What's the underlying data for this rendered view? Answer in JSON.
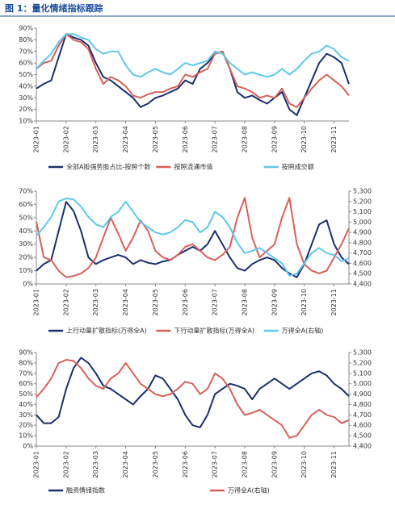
{
  "title": "图 1：量化情绪指标跟踪",
  "chart_data": [
    {
      "type": "line",
      "categories": [
        "2023-01",
        null,
        null,
        null,
        "2023-02",
        null,
        null,
        null,
        "2023-03",
        null,
        null,
        null,
        "2023-04",
        null,
        null,
        null,
        "2023-05",
        null,
        null,
        null,
        "2023-06",
        null,
        null,
        null,
        "2023-07",
        null,
        null,
        null,
        "2023-08",
        null,
        null,
        null,
        "2023-09",
        null,
        null,
        null,
        "2023-10",
        null,
        null,
        null,
        "2023-11",
        null,
        null
      ],
      "ylim": [
        10,
        90
      ],
      "yticks": [
        {
          "value": 10,
          "label": "10%"
        },
        {
          "value": 20,
          "label": "20%"
        },
        {
          "value": 30,
          "label": "30%"
        },
        {
          "value": 40,
          "label": "40%"
        },
        {
          "value": 50,
          "label": "50%"
        },
        {
          "value": 60,
          "label": "60%"
        },
        {
          "value": 70,
          "label": "70%"
        },
        {
          "value": 80,
          "label": "80%"
        },
        {
          "value": 90,
          "label": "90%"
        }
      ],
      "legend": "bottom",
      "series": [
        {
          "name": "全部A股强势股占比-按照个数",
          "color": "#1b2f6e",
          "values": [
            38,
            42,
            45,
            65,
            85,
            82,
            80,
            75,
            60,
            48,
            45,
            40,
            35,
            30,
            22,
            25,
            30,
            32,
            35,
            38,
            45,
            42,
            55,
            60,
            68,
            70,
            55,
            35,
            30,
            32,
            28,
            25,
            30,
            35,
            20,
            15,
            30,
            45,
            60,
            68,
            65,
            60,
            42
          ]
        },
        {
          "name": "按照流通市值",
          "color": "#d9605a",
          "values": [
            55,
            60,
            62,
            75,
            85,
            80,
            78,
            72,
            55,
            42,
            48,
            45,
            40,
            32,
            30,
            33,
            35,
            35,
            38,
            40,
            50,
            48,
            52,
            55,
            68,
            70,
            55,
            40,
            38,
            35,
            30,
            32,
            30,
            38,
            25,
            22,
            30,
            38,
            45,
            50,
            45,
            40,
            32
          ]
        },
        {
          "name": "按照成交额",
          "color": "#5ec8ea",
          "values": [
            55,
            62,
            68,
            78,
            85,
            85,
            82,
            80,
            72,
            68,
            70,
            70,
            58,
            50,
            48,
            52,
            55,
            52,
            50,
            55,
            60,
            58,
            60,
            62,
            70,
            68,
            60,
            55,
            50,
            52,
            50,
            48,
            50,
            55,
            50,
            55,
            62,
            68,
            70,
            75,
            72,
            65,
            62
          ]
        }
      ]
    },
    {
      "type": "line",
      "categories": [
        "2023-01",
        null,
        null,
        null,
        "2023-02",
        null,
        null,
        null,
        "2023-03",
        null,
        null,
        null,
        "2023-04",
        null,
        null,
        null,
        "2023-05",
        null,
        null,
        null,
        "2023-06",
        null,
        null,
        null,
        "2023-07",
        null,
        null,
        null,
        "2023-08",
        null,
        null,
        null,
        "2023-09",
        null,
        null,
        null,
        "2023-10",
        null,
        null,
        null,
        "2023-11",
        null,
        null
      ],
      "ylim": [
        0,
        70
      ],
      "yticks": [
        {
          "value": 0,
          "label": "0%"
        },
        {
          "value": 10,
          "label": "10%"
        },
        {
          "value": 20,
          "label": "20%"
        },
        {
          "value": 30,
          "label": "30%"
        },
        {
          "value": 40,
          "label": "40%"
        },
        {
          "value": 50,
          "label": "50%"
        },
        {
          "value": 60,
          "label": "60%"
        },
        {
          "value": 70,
          "label": "70%"
        }
      ],
      "y2lim": [
        4400,
        5300
      ],
      "y2ticks": [
        {
          "value": 4400,
          "label": "4,400"
        },
        {
          "value": 4500,
          "label": "4,500"
        },
        {
          "value": 4600,
          "label": "4,600"
        },
        {
          "value": 4700,
          "label": "4,700"
        },
        {
          "value": 4800,
          "label": "4,800"
        },
        {
          "value": 4900,
          "label": "4,900"
        },
        {
          "value": 5000,
          "label": "5,000"
        },
        {
          "value": 5100,
          "label": "5,100"
        },
        {
          "value": 5200,
          "label": "5,200"
        },
        {
          "value": 5300,
          "label": "5,300"
        }
      ],
      "legend": "bottom",
      "series": [
        {
          "name": "上行动量扩散指标(万得全A)",
          "color": "#1b2f6e",
          "values": [
            10,
            15,
            18,
            40,
            62,
            55,
            40,
            20,
            15,
            18,
            20,
            22,
            20,
            15,
            18,
            16,
            15,
            17,
            18,
            22,
            25,
            28,
            25,
            30,
            40,
            30,
            20,
            12,
            10,
            15,
            18,
            20,
            18,
            12,
            8,
            5,
            15,
            30,
            45,
            48,
            30,
            20,
            15
          ]
        },
        {
          "name": "下行动量扩散指标(万得全A)",
          "color": "#d9605a",
          "values": [
            47,
            20,
            18,
            10,
            5,
            6,
            8,
            12,
            20,
            35,
            50,
            38,
            25,
            35,
            48,
            40,
            25,
            20,
            18,
            22,
            28,
            30,
            25,
            20,
            18,
            22,
            28,
            50,
            65,
            35,
            20,
            25,
            30,
            50,
            65,
            30,
            15,
            10,
            8,
            10,
            20,
            30,
            42
          ]
        },
        {
          "name": "万得全A(右轴)",
          "color": "#5ec8ea",
          "axis": "y2",
          "values": [
            4870,
            4950,
            5050,
            5200,
            5230,
            5220,
            5150,
            5050,
            4980,
            4950,
            5050,
            5100,
            5200,
            5100,
            5000,
            4950,
            4900,
            4880,
            4900,
            4950,
            5020,
            5000,
            4900,
            4950,
            5100,
            5050,
            4950,
            4800,
            4700,
            4720,
            4750,
            4700,
            4650,
            4600,
            4480,
            4500,
            4600,
            4700,
            4750,
            4700,
            4680,
            4620,
            4650
          ]
        }
      ]
    },
    {
      "type": "line",
      "categories": [
        "2023-01",
        null,
        null,
        null,
        "2023-02",
        null,
        null,
        null,
        "2023-03",
        null,
        null,
        null,
        "2023-04",
        null,
        null,
        null,
        "2023-05",
        null,
        null,
        null,
        "2023-06",
        null,
        null,
        null,
        "2023-07",
        null,
        null,
        null,
        "2023-08",
        null,
        null,
        null,
        "2023-09",
        null,
        null,
        null,
        "2023-10",
        null,
        null,
        null,
        "2023-11",
        null,
        null
      ],
      "ylim": [
        0,
        90
      ],
      "yticks": [
        {
          "value": 0,
          "label": "0%"
        },
        {
          "value": 10,
          "label": "10%"
        },
        {
          "value": 20,
          "label": "20%"
        },
        {
          "value": 30,
          "label": "30%"
        },
        {
          "value": 40,
          "label": "40%"
        },
        {
          "value": 50,
          "label": "50%"
        },
        {
          "value": 60,
          "label": "60%"
        },
        {
          "value": 70,
          "label": "70%"
        },
        {
          "value": 80,
          "label": "80%"
        },
        {
          "value": 90,
          "label": "90%"
        }
      ],
      "y2lim": [
        4400,
        5300
      ],
      "y2ticks": [
        {
          "value": 4400,
          "label": "4,400"
        },
        {
          "value": 4500,
          "label": "4,500"
        },
        {
          "value": 4600,
          "label": "4,600"
        },
        {
          "value": 4700,
          "label": "4,700"
        },
        {
          "value": 4800,
          "label": "4,800"
        },
        {
          "value": 4900,
          "label": "4,900"
        },
        {
          "value": 5000,
          "label": "5,000"
        },
        {
          "value": 5100,
          "label": "5,100"
        },
        {
          "value": 5200,
          "label": "5,200"
        },
        {
          "value": 5300,
          "label": "5,300"
        }
      ],
      "legend": "bottom",
      "series": [
        {
          "name": "融资情绪指数",
          "color": "#1b2f6e",
          "values": [
            30,
            22,
            22,
            28,
            55,
            75,
            85,
            80,
            70,
            58,
            55,
            50,
            45,
            40,
            48,
            55,
            68,
            65,
            55,
            45,
            30,
            20,
            18,
            30,
            50,
            55,
            60,
            58,
            55,
            45,
            55,
            60,
            65,
            60,
            55,
            60,
            65,
            70,
            72,
            68,
            60,
            55,
            48
          ]
        },
        {
          "name": "万得全A(右轴)",
          "color": "#d9605a",
          "axis": "y2",
          "values": [
            4870,
            4950,
            5050,
            5200,
            5230,
            5220,
            5150,
            5050,
            4980,
            4950,
            5050,
            5100,
            5200,
            5100,
            5000,
            4950,
            4900,
            4880,
            4900,
            4950,
            5020,
            5000,
            4900,
            4950,
            5100,
            5050,
            4950,
            4800,
            4700,
            4720,
            4750,
            4700,
            4650,
            4600,
            4480,
            4500,
            4600,
            4700,
            4750,
            4700,
            4680,
            4620,
            4650
          ]
        }
      ]
    }
  ]
}
